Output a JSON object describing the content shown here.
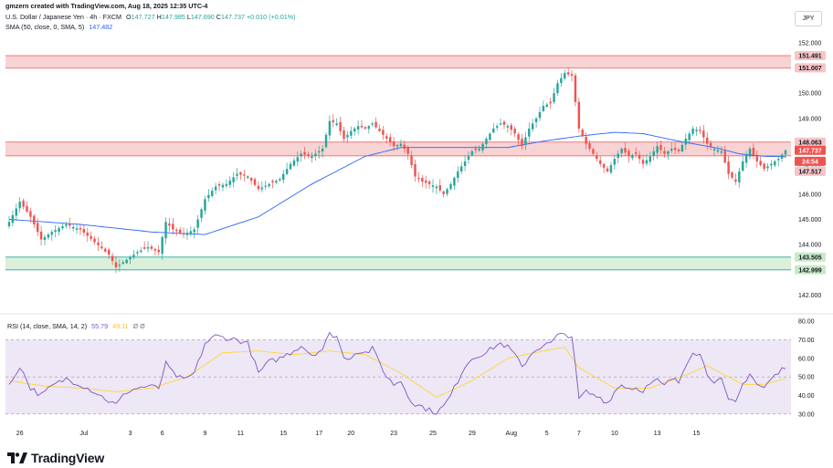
{
  "header": {
    "created_line": "gmzern created with TradingView.com, Aug 18, 2025 12:35 UTC-4",
    "symbol_line": "U.S. Dollar / Japanese Yen · 4h · FXCM",
    "ohlc": {
      "o_label": "O",
      "o": "147.727",
      "h_label": "H",
      "h": "147.985",
      "l_label": "L",
      "l": "147.690",
      "c_label": "C",
      "c": "147.737",
      "change": "+0.010 (+0.01%)"
    },
    "sma_line_label": "SMA (50, close, 0, SMA, 5)",
    "sma_value": "147.482"
  },
  "currency_badge": "JPY",
  "rsi_header": {
    "label": "RSI (14, close, SMA, 14, 2)",
    "rsi_value": "55.79",
    "sma_value": "49.11",
    "extra": "Ø  Ø"
  },
  "brand": "TradingView",
  "price_tags": [
    {
      "text": "151.491",
      "bg": "#f7c5c5",
      "color": "#131722",
      "price": 151.491
    },
    {
      "text": "151.007",
      "bg": "#f7c5c5",
      "color": "#131722",
      "price": 151.007
    },
    {
      "text": "148.063",
      "bg": "#f7c5c5",
      "color": "#131722",
      "price": 148.063
    },
    {
      "text": "147.737",
      "bg": "#ef5350",
      "color": "#ffffff",
      "price": 147.737
    },
    {
      "text": "24:54",
      "bg": "#ef5350",
      "color": "#ffffff",
      "price": 147.3
    },
    {
      "text": "147.517",
      "bg": "#f7c5c5",
      "color": "#131722",
      "price": 146.9
    },
    {
      "text": "143.505",
      "bg": "#c8eac8",
      "color": "#131722",
      "price": 143.505
    },
    {
      "text": "142.999",
      "bg": "#c8eac8",
      "color": "#131722",
      "price": 142.999
    }
  ],
  "colors": {
    "up": "#26a69a",
    "down": "#ef5350",
    "sma": "#2962ff",
    "rsi": "#7e57c2",
    "rsi_sma": "#fdd835",
    "res_zone": "#f6c4c6",
    "sup_zone": "#cdebcd",
    "rsi_band": "#ede7f6"
  },
  "chart_data": [
    {
      "type": "candlestick",
      "title": "U.S. Dollar / Japanese Yen · 4h · FXCM",
      "y_axis_ticks": [
        "152.000",
        "151.000",
        "150.000",
        "149.000",
        "148.000",
        "147.000",
        "146.000",
        "145.000",
        "144.000",
        "143.000",
        "142.000"
      ],
      "ylim": [
        141.4,
        152.25
      ],
      "x_axis_ticks": [
        "26",
        "Jul",
        "3",
        "6",
        "9",
        "11",
        "15",
        "17",
        "20",
        "23",
        "25",
        "29",
        "Aug",
        "5",
        "7",
        "10",
        "13",
        "15"
      ],
      "zones": [
        {
          "name": "resistance",
          "from": 151.007,
          "to": 151.491
        },
        {
          "name": "pivot",
          "from": 147.517,
          "to": 148.063
        },
        {
          "name": "support",
          "from": 142.999,
          "to": 143.505
        }
      ],
      "close_path": [
        [
          0,
          144.9
        ],
        [
          3,
          145.7
        ],
        [
          6,
          145.1
        ],
        [
          9,
          144.2
        ],
        [
          12,
          144.5
        ],
        [
          16,
          144.8
        ],
        [
          20,
          144.6
        ],
        [
          24,
          144.1
        ],
        [
          28,
          143.6
        ],
        [
          30,
          143.1
        ],
        [
          33,
          143.4
        ],
        [
          36,
          143.7
        ],
        [
          39,
          143.9
        ],
        [
          42,
          143.7
        ],
        [
          44,
          144.9
        ],
        [
          46,
          144.6
        ],
        [
          49,
          144.4
        ],
        [
          52,
          144.6
        ],
        [
          55,
          145.8
        ],
        [
          58,
          146.3
        ],
        [
          61,
          146.4
        ],
        [
          64,
          146.8
        ],
        [
          67,
          146.7
        ],
        [
          70,
          146.2
        ],
        [
          73,
          146.4
        ],
        [
          76,
          146.6
        ],
        [
          79,
          147.2
        ],
        [
          82,
          147.6
        ],
        [
          85,
          147.5
        ],
        [
          88,
          147.8
        ],
        [
          90,
          148.9
        ],
        [
          92,
          148.8
        ],
        [
          94,
          148.2
        ],
        [
          96,
          148.5
        ],
        [
          98,
          148.7
        ],
        [
          100,
          148.6
        ],
        [
          102,
          148.8
        ],
        [
          104,
          148.5
        ],
        [
          106,
          148.2
        ],
        [
          108,
          147.9
        ],
        [
          110,
          148.0
        ],
        [
          112,
          147.6
        ],
        [
          114,
          146.7
        ],
        [
          116,
          146.5
        ],
        [
          118,
          146.4
        ],
        [
          120,
          146.3
        ],
        [
          122,
          146.0
        ],
        [
          124,
          146.4
        ],
        [
          126,
          146.9
        ],
        [
          128,
          147.3
        ],
        [
          130,
          147.7
        ],
        [
          132,
          147.8
        ],
        [
          134,
          148.2
        ],
        [
          136,
          148.6
        ],
        [
          138,
          148.8
        ],
        [
          140,
          148.7
        ],
        [
          142,
          148.4
        ],
        [
          144,
          147.9
        ],
        [
          146,
          148.6
        ],
        [
          148,
          149.0
        ],
        [
          150,
          149.5
        ],
        [
          152,
          149.6
        ],
        [
          154,
          150.4
        ],
        [
          156,
          150.8
        ],
        [
          158,
          150.7
        ],
        [
          160,
          148.6
        ],
        [
          162,
          148.0
        ],
        [
          164,
          147.6
        ],
        [
          166,
          147.2
        ],
        [
          168,
          146.9
        ],
        [
          170,
          147.4
        ],
        [
          172,
          147.8
        ],
        [
          174,
          147.5
        ],
        [
          176,
          147.6
        ],
        [
          178,
          147.2
        ],
        [
          180,
          147.5
        ],
        [
          182,
          147.9
        ],
        [
          184,
          147.6
        ],
        [
          186,
          147.8
        ],
        [
          188,
          147.7
        ],
        [
          190,
          148.2
        ],
        [
          192,
          148.6
        ],
        [
          194,
          148.5
        ],
        [
          196,
          148.0
        ],
        [
          198,
          147.8
        ],
        [
          200,
          147.7
        ],
        [
          202,
          146.8
        ],
        [
          204,
          146.5
        ],
        [
          206,
          147.3
        ],
        [
          208,
          147.8
        ],
        [
          210,
          147.3
        ],
        [
          212,
          147.0
        ],
        [
          214,
          147.2
        ],
        [
          216,
          147.4
        ],
        [
          218,
          147.737
        ]
      ],
      "sma_path": [
        [
          0,
          145.0
        ],
        [
          20,
          144.8
        ],
        [
          40,
          144.5
        ],
        [
          55,
          144.4
        ],
        [
          70,
          145.1
        ],
        [
          85,
          146.4
        ],
        [
          100,
          147.5
        ],
        [
          110,
          147.85
        ],
        [
          125,
          147.85
        ],
        [
          140,
          147.85
        ],
        [
          150,
          148.1
        ],
        [
          160,
          148.3
        ],
        [
          170,
          148.45
        ],
        [
          178,
          148.4
        ],
        [
          188,
          148.1
        ],
        [
          198,
          147.85
        ],
        [
          205,
          147.6
        ],
        [
          212,
          147.5
        ],
        [
          218,
          147.482
        ]
      ]
    },
    {
      "type": "line",
      "title": "RSI (14, close, SMA, 14, 2)",
      "y_axis_ticks": [
        "80.00",
        "70.00",
        "60.00",
        "50.00",
        "40.00",
        "30.00"
      ],
      "ylim": [
        26,
        82
      ],
      "bands": [
        30,
        70
      ],
      "series": [
        {
          "name": "RSI",
          "points": [
            [
              0,
              45
            ],
            [
              3,
              56
            ],
            [
              6,
              44
            ],
            [
              9,
              40
            ],
            [
              12,
              45
            ],
            [
              16,
              49
            ],
            [
              20,
              46
            ],
            [
              24,
              42
            ],
            [
              28,
              37
            ],
            [
              30,
              35
            ],
            [
              33,
              42
            ],
            [
              36,
              44
            ],
            [
              39,
              45
            ],
            [
              42,
              44
            ],
            [
              44,
              57
            ],
            [
              46,
              52
            ],
            [
              49,
              48
            ],
            [
              52,
              52
            ],
            [
              55,
              68
            ],
            [
              58,
              72
            ],
            [
              61,
              71
            ],
            [
              64,
              70
            ],
            [
              67,
              68
            ],
            [
              70,
              52
            ],
            [
              73,
              58
            ],
            [
              76,
              60
            ],
            [
              79,
              63
            ],
            [
              82,
              67
            ],
            [
              85,
              62
            ],
            [
              88,
              65
            ],
            [
              90,
              73
            ],
            [
              92,
              72
            ],
            [
              94,
              60
            ],
            [
              96,
              61
            ],
            [
              98,
              64
            ],
            [
              100,
              63
            ],
            [
              102,
              65
            ],
            [
              104,
              58
            ],
            [
              106,
              50
            ],
            [
              108,
              46
            ],
            [
              110,
              48
            ],
            [
              112,
              40
            ],
            [
              114,
              35
            ],
            [
              116,
              34
            ],
            [
              118,
              32
            ],
            [
              120,
              31
            ],
            [
              122,
              34
            ],
            [
              124,
              40
            ],
            [
              126,
              48
            ],
            [
              128,
              56
            ],
            [
              130,
              60
            ],
            [
              132,
              62
            ],
            [
              134,
              63
            ],
            [
              136,
              66
            ],
            [
              138,
              68
            ],
            [
              140,
              66
            ],
            [
              142,
              62
            ],
            [
              144,
              55
            ],
            [
              146,
              61
            ],
            [
              148,
              65
            ],
            [
              150,
              67
            ],
            [
              152,
              68
            ],
            [
              154,
              72
            ],
            [
              156,
              73
            ],
            [
              158,
              72
            ],
            [
              160,
              38
            ],
            [
              162,
              42
            ],
            [
              164,
              40
            ],
            [
              166,
              39
            ],
            [
              168,
              36
            ],
            [
              170,
              42
            ],
            [
              172,
              46
            ],
            [
              174,
              44
            ],
            [
              176,
              44
            ],
            [
              178,
              43
            ],
            [
              180,
              46
            ],
            [
              182,
              48
            ],
            [
              184,
              45
            ],
            [
              186,
              49
            ],
            [
              188,
              47
            ],
            [
              190,
              57
            ],
            [
              192,
              64
            ],
            [
              194,
              62
            ],
            [
              196,
              52
            ],
            [
              198,
              48
            ],
            [
              200,
              48
            ],
            [
              202,
              37
            ],
            [
              204,
              36
            ],
            [
              206,
              46
            ],
            [
              208,
              52
            ],
            [
              210,
              46
            ],
            [
              212,
              44
            ],
            [
              214,
              49
            ],
            [
              216,
              52
            ],
            [
              218,
              55.79
            ]
          ]
        },
        {
          "name": "RSI-based MA",
          "points": [
            [
              0,
              48
            ],
            [
              10,
              45
            ],
            [
              20,
              44
            ],
            [
              30,
              42
            ],
            [
              40,
              44
            ],
            [
              50,
              50
            ],
            [
              60,
              63
            ],
            [
              70,
              64
            ],
            [
              80,
              62
            ],
            [
              90,
              64
            ],
            [
              100,
              62
            ],
            [
              110,
              52
            ],
            [
              120,
              39
            ],
            [
              130,
              48
            ],
            [
              140,
              60
            ],
            [
              150,
              64
            ],
            [
              156,
              66
            ],
            [
              160,
              55
            ],
            [
              170,
              44
            ],
            [
              180,
              44
            ],
            [
              190,
              51
            ],
            [
              196,
              56
            ],
            [
              200,
              52
            ],
            [
              206,
              46
            ],
            [
              212,
              46
            ],
            [
              218,
              49.11
            ]
          ]
        }
      ]
    }
  ]
}
